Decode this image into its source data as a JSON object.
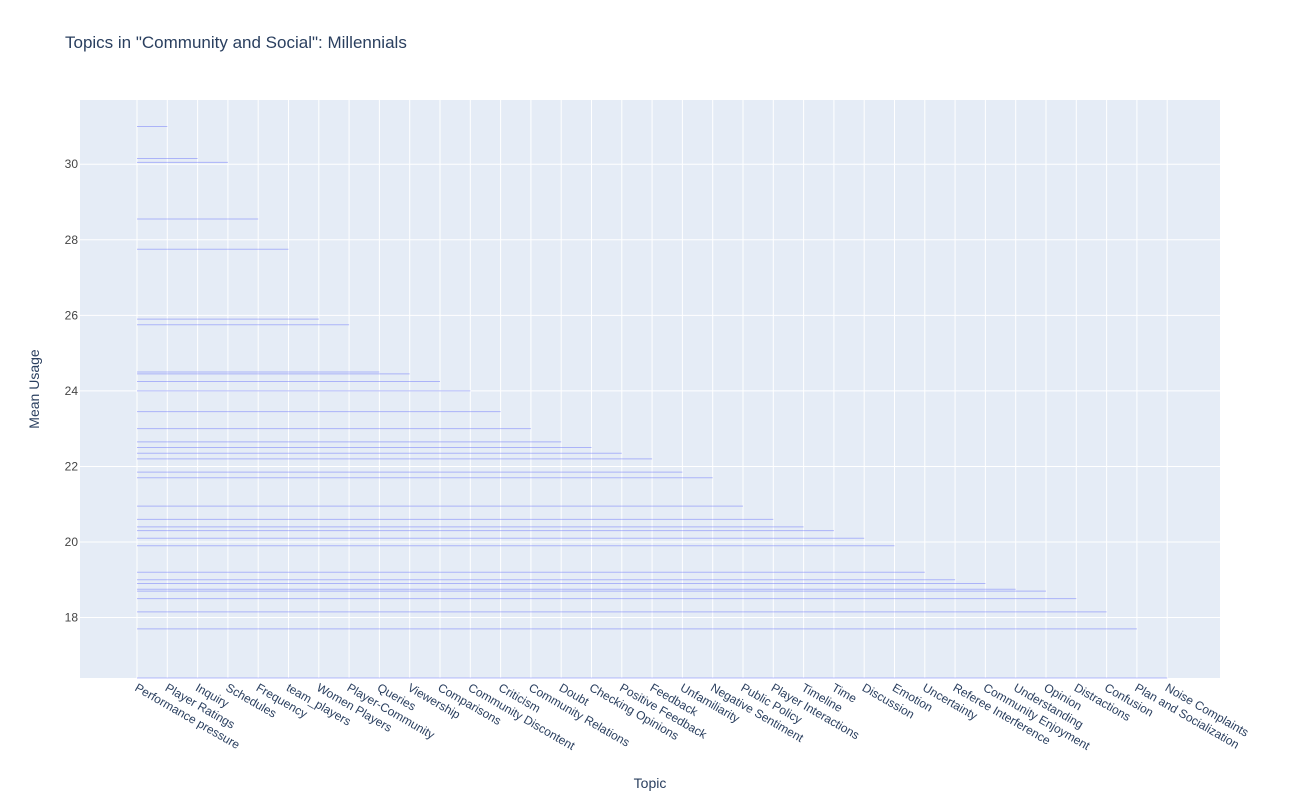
{
  "chart_data": {
    "type": "bar",
    "orientation": "horizontal-segments",
    "title": "Topics in \"Community and Social\": Millennials",
    "xlabel": "Topic",
    "ylabel": "Mean Usage",
    "categories": [
      "Performance pressure",
      "Player Ratings",
      "Inquiry",
      "Schedules",
      "Frequency",
      "team_players",
      "Women Players",
      "Player-Community",
      "Queries",
      "Viewership",
      "Comparisons",
      "Community Discontent",
      "Criticism",
      "Community Relations",
      "Doubt",
      "Checking Opinions",
      "Positive Feedback",
      "Feedback",
      "Unfamiliarity",
      "Negative Sentiment",
      "Public Policy",
      "Player Interactions",
      "Timeline",
      "Time",
      "Discussion",
      "Emotion",
      "Uncertainty",
      "Referee Interference",
      "Community Enjoyment",
      "Understanding",
      "Opinion",
      "Distractions",
      "Confusion",
      "Plan and Socialization",
      "Noise Complaints"
    ],
    "segments": [
      {
        "y": 31.0,
        "x_end": "Player Ratings"
      },
      {
        "y": 30.15,
        "x_end": "Inquiry"
      },
      {
        "y": 30.05,
        "x_end": "Schedules"
      },
      {
        "y": 28.55,
        "x_end": "Frequency"
      },
      {
        "y": 27.75,
        "x_end": "team_players"
      },
      {
        "y": 25.9,
        "x_end": "Women Players"
      },
      {
        "y": 25.75,
        "x_end": "Player-Community"
      },
      {
        "y": 24.5,
        "x_end": "Queries"
      },
      {
        "y": 24.45,
        "x_end": "Viewership"
      },
      {
        "y": 24.25,
        "x_end": "Comparisons"
      },
      {
        "y": 24.0,
        "x_end": "Community Discontent"
      },
      {
        "y": 23.45,
        "x_end": "Criticism"
      },
      {
        "y": 23.0,
        "x_end": "Community Relations"
      },
      {
        "y": 22.65,
        "x_end": "Doubt"
      },
      {
        "y": 22.5,
        "x_end": "Checking Opinions"
      },
      {
        "y": 22.35,
        "x_end": "Positive Feedback"
      },
      {
        "y": 22.2,
        "x_end": "Feedback"
      },
      {
        "y": 21.85,
        "x_end": "Unfamiliarity"
      },
      {
        "y": 21.7,
        "x_end": "Negative Sentiment"
      },
      {
        "y": 20.95,
        "x_end": "Public Policy"
      },
      {
        "y": 20.6,
        "x_end": "Player Interactions"
      },
      {
        "y": 20.4,
        "x_end": "Timeline"
      },
      {
        "y": 20.3,
        "x_end": "Time"
      },
      {
        "y": 20.1,
        "x_end": "Discussion"
      },
      {
        "y": 19.9,
        "x_end": "Emotion"
      },
      {
        "y": 19.2,
        "x_end": "Uncertainty"
      },
      {
        "y": 19.0,
        "x_end": "Referee Interference"
      },
      {
        "y": 18.9,
        "x_end": "Community Enjoyment"
      },
      {
        "y": 18.75,
        "x_end": "Understanding"
      },
      {
        "y": 18.7,
        "x_end": "Opinion"
      },
      {
        "y": 18.5,
        "x_end": "Distractions"
      },
      {
        "y": 18.15,
        "x_end": "Confusion"
      },
      {
        "y": 17.7,
        "x_end": "Plan and Socialization"
      },
      {
        "y": 16.4,
        "x_end": "Noise Complaints"
      }
    ],
    "yticks": [
      18,
      20,
      22,
      24,
      26,
      28,
      30
    ],
    "ylim": [
      16.4,
      31.7
    ],
    "grid": true,
    "colors": {
      "background": "#e5ecf6",
      "gridline": "#ffffff",
      "segment": "#636efa",
      "text": "#2a3f5f"
    }
  }
}
